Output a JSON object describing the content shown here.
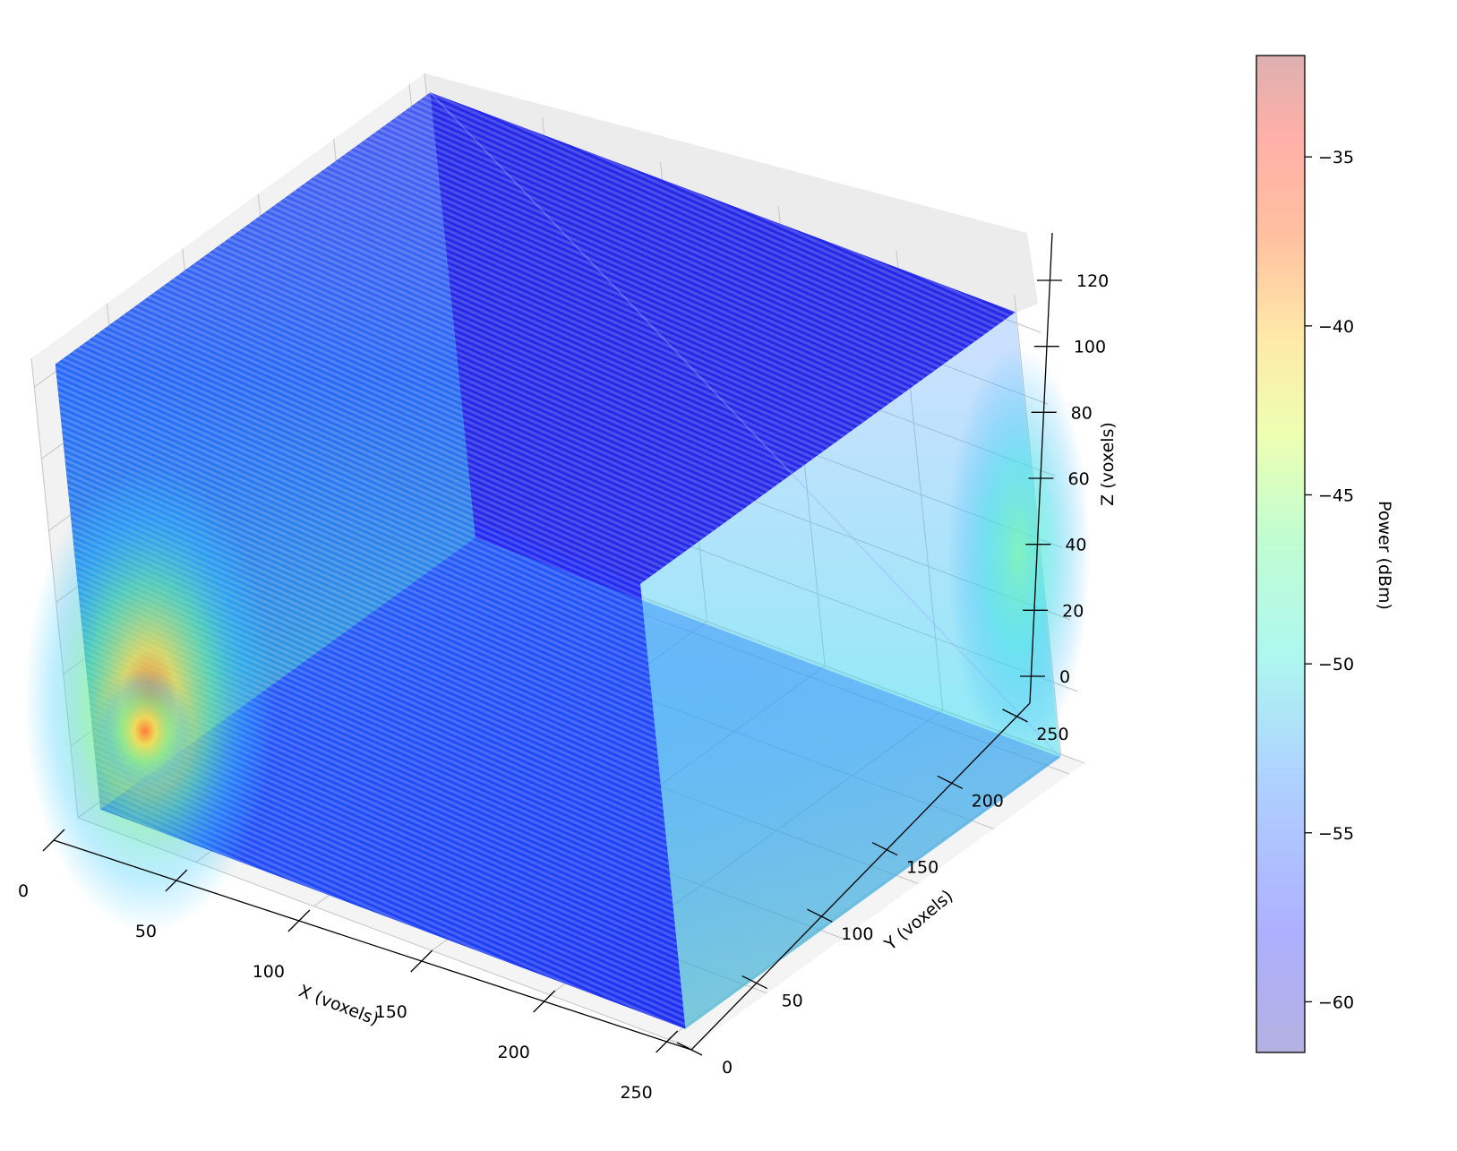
{
  "chart_data": {
    "type": "scatter3d",
    "x_label": "X (voxels)",
    "y_label": "Y (voxels)",
    "z_label": "Z (voxels)",
    "x_range": [
      0,
      260
    ],
    "y_range": [
      0,
      260
    ],
    "z_range": [
      0,
      128
    ],
    "x_ticks": [
      0,
      50,
      100,
      150,
      200,
      250
    ],
    "y_ticks": [
      0,
      50,
      100,
      150,
      200,
      250
    ],
    "z_ticks": [
      0,
      20,
      40,
      60,
      80,
      100,
      120
    ],
    "grid": true,
    "colormap": "jet",
    "color_range": [
      -61.5,
      -32
    ],
    "colorbar": {
      "label": "Power (dBm)",
      "ticks": [
        -35,
        -40,
        -45,
        -50,
        -55,
        -60
      ],
      "tick_labels": [
        "−35",
        "−40",
        "−45",
        "−50",
        "−55",
        "−60"
      ]
    },
    "hotspots": [
      {
        "x": 5,
        "y": 30,
        "z": 10,
        "peak_dbm": -38
      },
      {
        "x": 255,
        "y": 235,
        "z": 20,
        "peak_dbm": -49
      }
    ],
    "background_dbm": -61
  }
}
